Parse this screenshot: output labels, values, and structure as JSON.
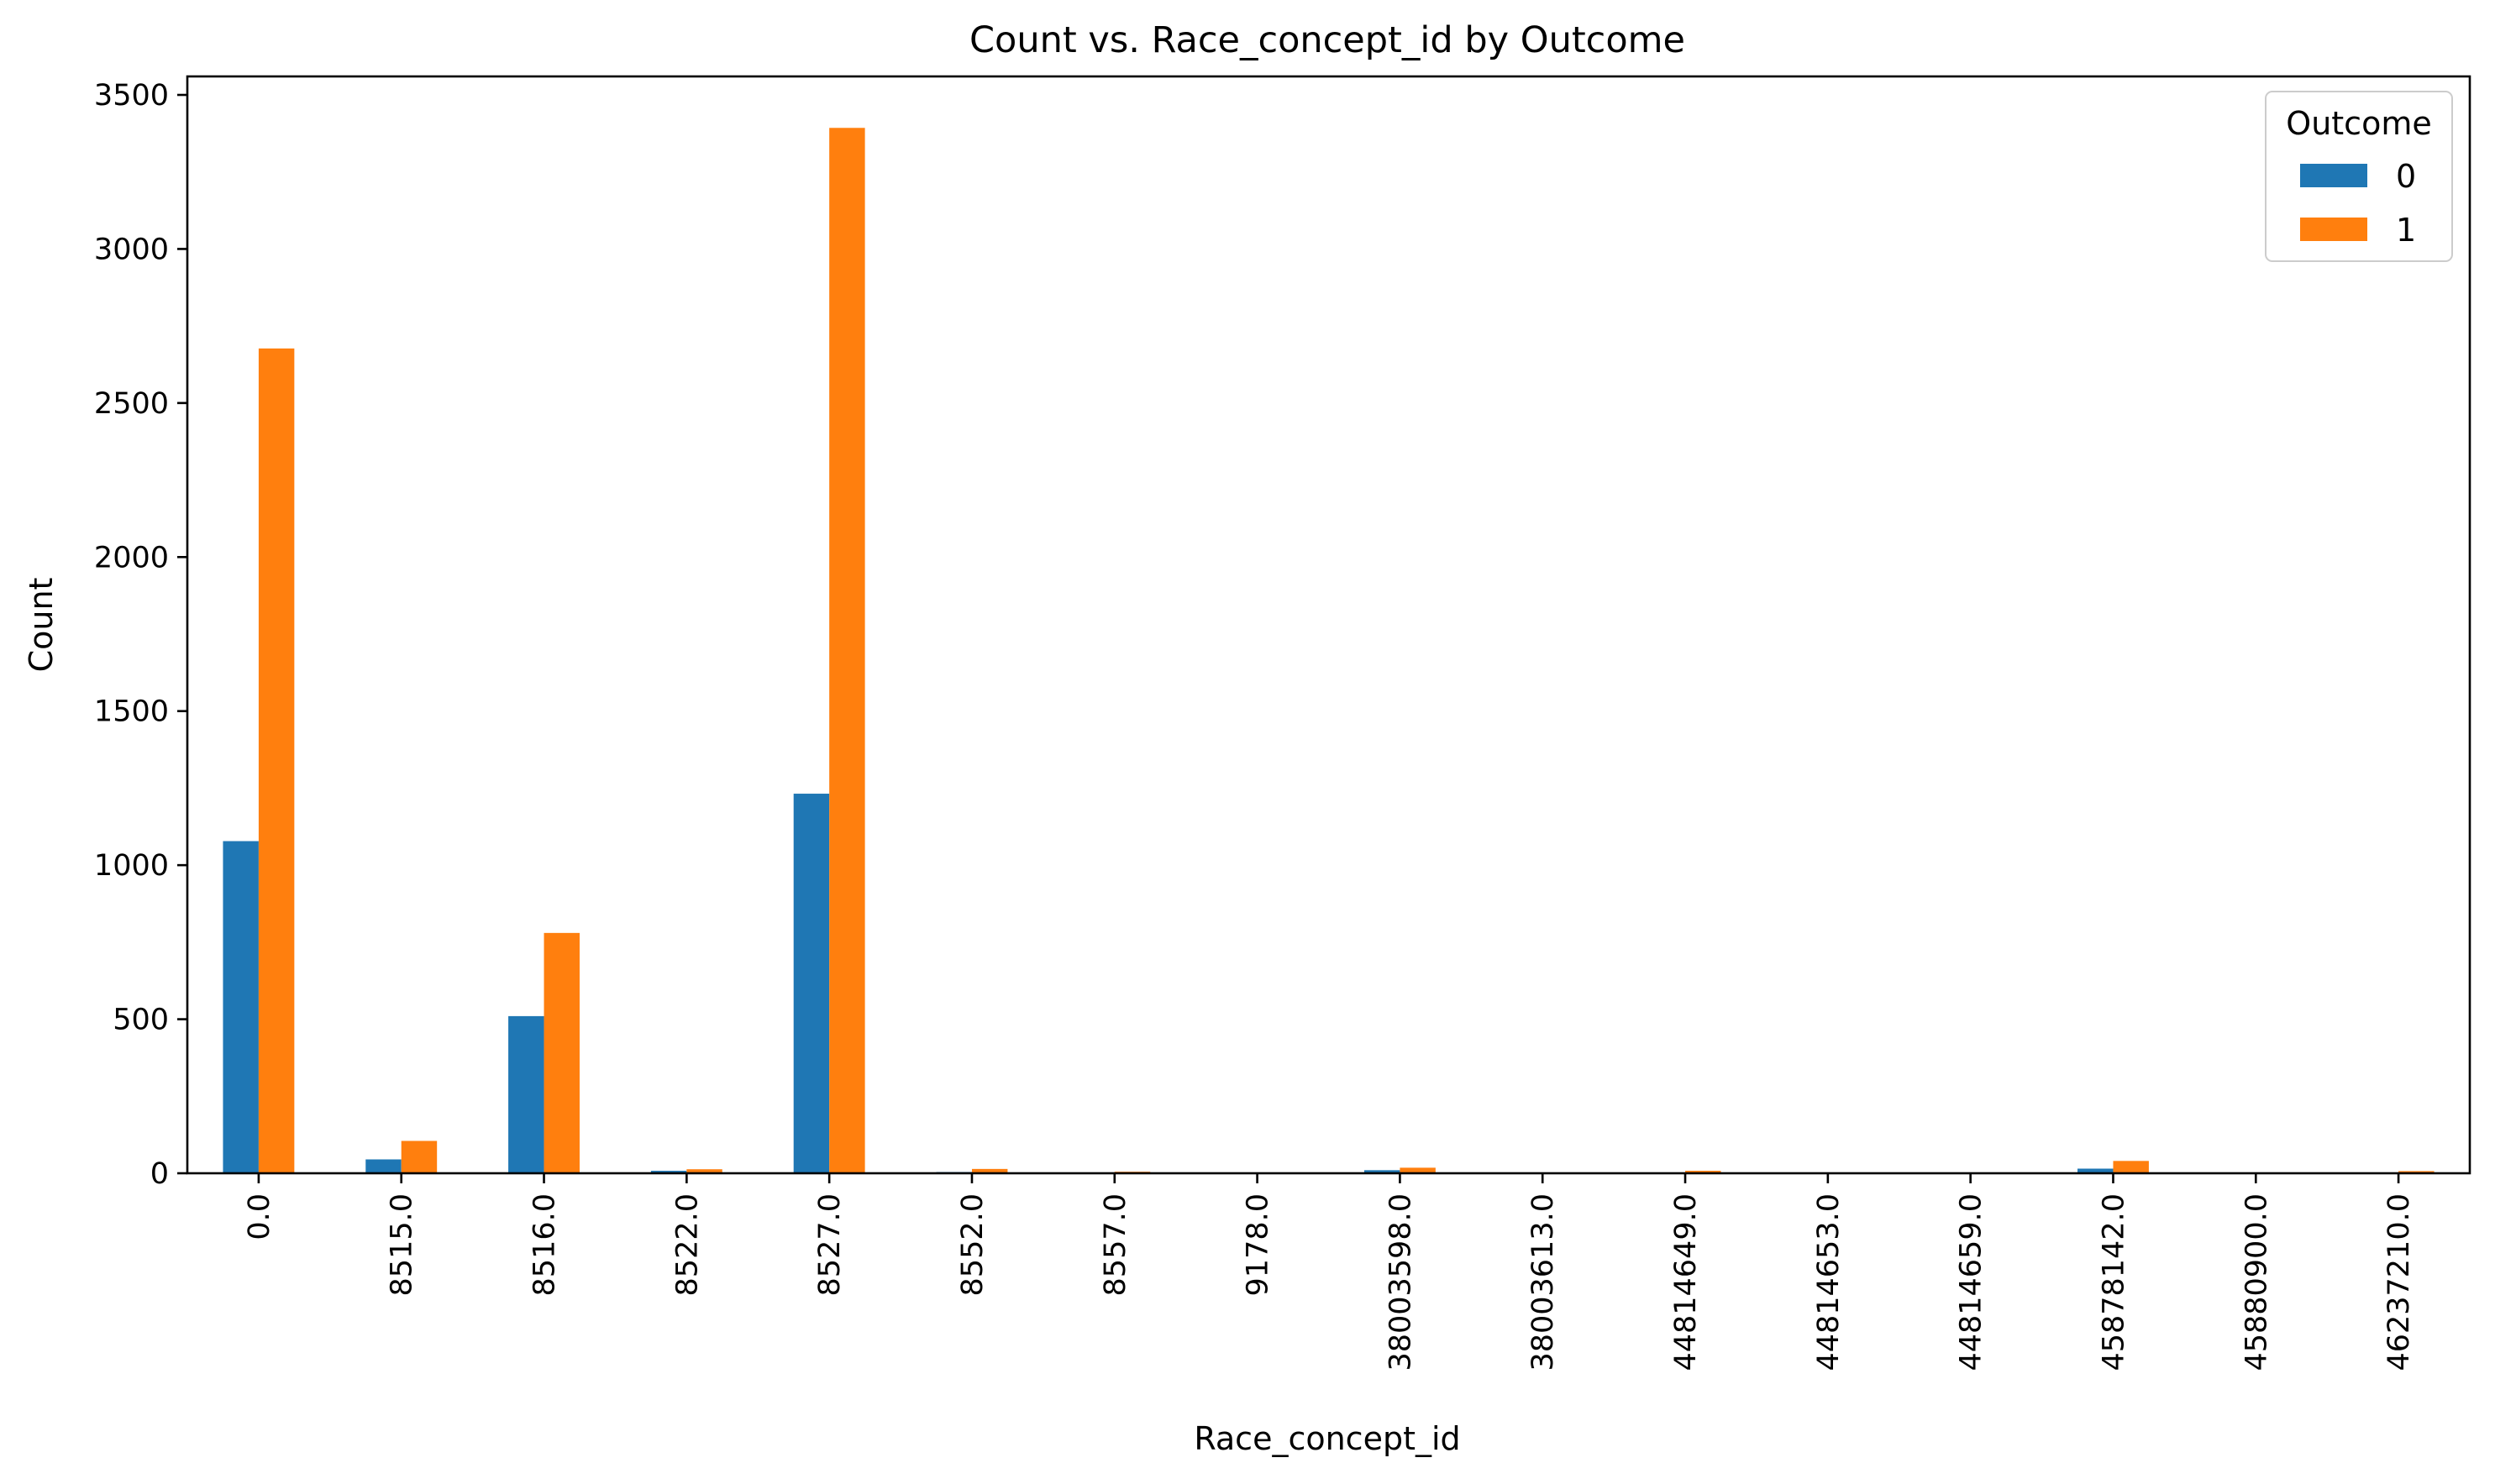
{
  "chart_data": {
    "type": "bar",
    "title": "Count vs. Race_concept_id by Outcome",
    "xlabel": "Race_concept_id",
    "ylabel": "Count",
    "ylim": [
      0,
      3560
    ],
    "yticks": [
      0,
      500,
      1000,
      1500,
      2000,
      2500,
      3000,
      3500
    ],
    "grid": false,
    "legend": {
      "title": "Outcome",
      "placement": "top-right"
    },
    "categories": [
      "0.0",
      "8515.0",
      "8516.0",
      "8522.0",
      "8527.0",
      "8552.0",
      "8557.0",
      "9178.0",
      "38003598.0",
      "38003613.0",
      "44814649.0",
      "44814653.0",
      "44814659.0",
      "45878142.0",
      "45880900.0",
      "46237210.0"
    ],
    "series": [
      {
        "name": "0",
        "color": "#1f77b4",
        "values": [
          1078,
          45,
          510,
          8,
          1232,
          4,
          1,
          1,
          10,
          0,
          1,
          0,
          0,
          15,
          0,
          1
        ]
      },
      {
        "name": "1",
        "color": "#ff7f0e",
        "values": [
          2677,
          105,
          780,
          13,
          3393,
          14,
          5,
          1,
          18,
          2,
          8,
          1,
          1,
          40,
          1,
          7
        ]
      }
    ]
  }
}
